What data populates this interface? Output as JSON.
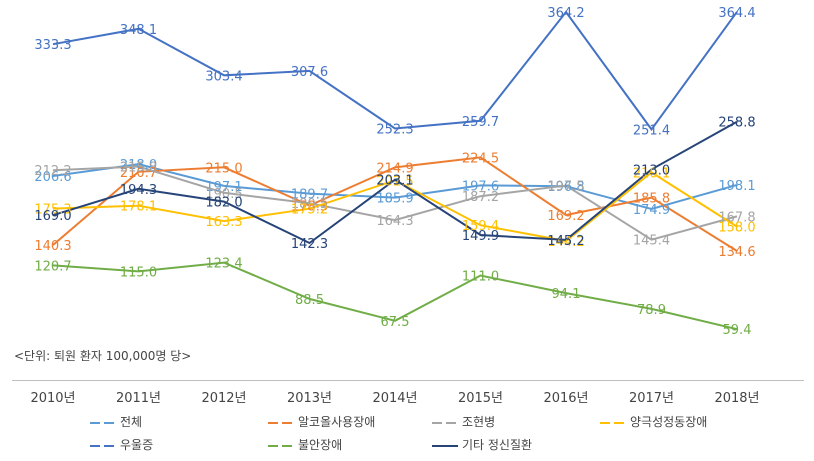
{
  "unit_note": "<단위: 퇴원 환자 100,000명 당>",
  "chart_data": {
    "type": "line",
    "title": "",
    "xlabel": "",
    "ylabel": "",
    "categories": [
      "2010년",
      "2011년",
      "2012년",
      "2013년",
      "2014년",
      "2015년",
      "2016년",
      "2017년",
      "2018년"
    ],
    "ylim": [
      50,
      370
    ],
    "grid": false,
    "legend_position": "bottom",
    "series": [
      {
        "name": "전체",
        "color": "#5B9BD5",
        "dash": true,
        "values": [
          206.6,
          218.0,
          197.1,
          189.7,
          185.9,
          197.6,
          196.8,
          174.9,
          198.1
        ]
      },
      {
        "name": "알코올사용장애",
        "color": "#ED7D31",
        "dash": true,
        "values": [
          140.3,
          210.7,
          215.0,
          178.3,
          214.9,
          224.5,
          169.2,
          185.8,
          134.6
        ]
      },
      {
        "name": "조현병",
        "color": "#A5A5A5",
        "dash": true,
        "values": [
          212.2,
          215.8,
          190.5,
          180.5,
          164.3,
          187.2,
          197.5,
          145.4,
          167.8
        ]
      },
      {
        "name": "양극성정동장애",
        "color": "#FFC000",
        "dash": true,
        "values": [
          175.3,
          178.1,
          163.3,
          175.2,
          202.5,
          159.4,
          144.2,
          210.1,
          158.0
        ]
      },
      {
        "name": "우울증",
        "color": "#4472C4",
        "dash": true,
        "values": [
          333.3,
          348.1,
          303.4,
          307.6,
          252.3,
          259.7,
          364.2,
          251.4,
          364.4
        ]
      },
      {
        "name": "불안장애",
        "color": "#70AD47",
        "dash": true,
        "values": [
          120.7,
          115.0,
          123.4,
          88.5,
          67.5,
          111.0,
          94.1,
          78.9,
          59.4
        ]
      },
      {
        "name": "기타 정신질환",
        "color": "#264478",
        "dash": false,
        "values": [
          169.0,
          194.3,
          182.0,
          142.3,
          203.1,
          149.9,
          145.2,
          213.0,
          258.8
        ]
      }
    ]
  }
}
